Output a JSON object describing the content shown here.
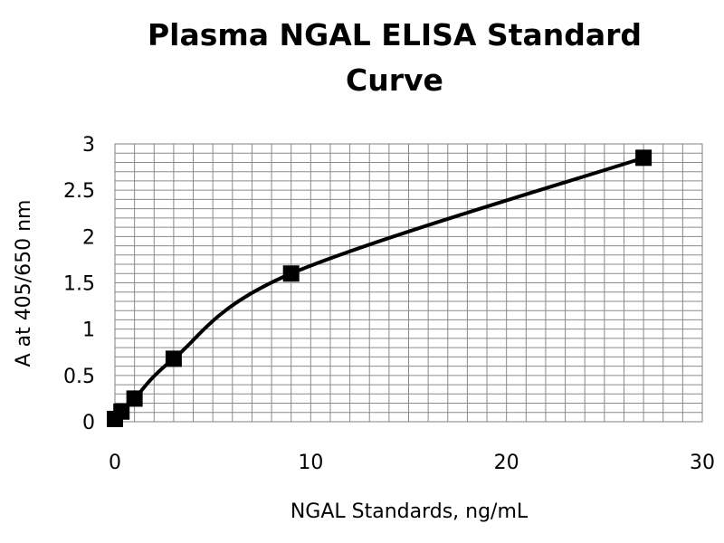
{
  "chart_data": {
    "type": "line",
    "title_lines": [
      "Plasma NGAL ELISA Standard",
      "Curve"
    ],
    "xlabel": "NGAL Standards, ng/mL",
    "ylabel": "A at 405/650 nm",
    "xlim": [
      0,
      30
    ],
    "ylim": [
      0,
      3
    ],
    "x_ticks": [
      0,
      10,
      20,
      30
    ],
    "y_ticks": [
      0,
      0.5,
      1,
      1.5,
      2,
      2.5,
      3
    ],
    "x_tick_labels": [
      "0",
      "10",
      "20",
      "30"
    ],
    "y_tick_labels": [
      "0",
      "0.5",
      "1",
      "1.5",
      "2",
      "2.5",
      "3"
    ],
    "grid": true,
    "x_minor_step": 1,
    "y_minor_step": 0.1,
    "series": [
      {
        "marker": "square",
        "color": "#000000",
        "x": [
          0,
          0.333,
          1,
          3,
          9,
          27
        ],
        "y": [
          0.03,
          0.11,
          0.25,
          0.68,
          1.6,
          2.85
        ]
      }
    ]
  }
}
